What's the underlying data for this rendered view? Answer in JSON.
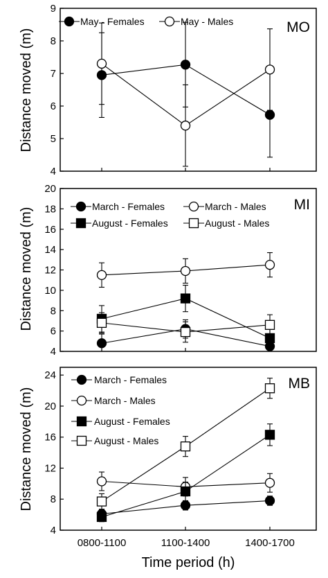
{
  "chart_data": [
    {
      "type": "line",
      "panel_label": "MO",
      "ylabel": "Distance moved (m)",
      "x_categories": [
        "0800-1100",
        "1100-1400",
        "1400-1700"
      ],
      "ylim": [
        4,
        9
      ],
      "yticks": [
        4,
        5,
        6,
        7,
        8,
        9
      ],
      "legend_placement": "top-left",
      "legend_columns": 2,
      "series": [
        {
          "name": "May - Females",
          "marker": "filled-circle",
          "values": [
            6.95,
            7.27,
            5.73
          ],
          "err": [
            1.3,
            1.3,
            1.3
          ]
        },
        {
          "name": "May - Males",
          "marker": "open-circle",
          "values": [
            7.3,
            5.4,
            7.12
          ],
          "err": [
            1.25,
            1.25,
            1.25
          ]
        }
      ]
    },
    {
      "type": "line",
      "panel_label": "MI",
      "ylabel": "Distance moved (m)",
      "x_categories": [
        "0800-1100",
        "1100-1400",
        "1400-1700"
      ],
      "ylim": [
        4,
        20
      ],
      "yticks": [
        4,
        6,
        8,
        10,
        12,
        14,
        16,
        18,
        20
      ],
      "legend_placement": "top",
      "legend_columns": 2,
      "series": [
        {
          "name": "March - Females",
          "marker": "filled-circle",
          "values": [
            4.8,
            6.2,
            4.5
          ],
          "err": [
            0.9,
            0.9,
            0.5
          ]
        },
        {
          "name": "March - Males",
          "marker": "open-circle",
          "values": [
            11.5,
            11.9,
            12.5
          ],
          "err": [
            1.2,
            1.2,
            1.2
          ]
        },
        {
          "name": "August -  Females",
          "marker": "filled-square",
          "values": [
            7.2,
            9.2,
            5.3
          ],
          "err": [
            1.3,
            1.3,
            1.3
          ]
        },
        {
          "name": "August - Males",
          "marker": "open-square",
          "values": [
            6.8,
            5.9,
            6.6
          ],
          "err": [
            1.0,
            1.0,
            1.0
          ]
        }
      ]
    },
    {
      "type": "line",
      "panel_label": "MB",
      "ylabel": "Distance moved (m)",
      "xlabel": "Time period (h)",
      "x_categories": [
        "0800-1100",
        "1100-1400",
        "1400-1700"
      ],
      "ylim": [
        4,
        25
      ],
      "yticks": [
        4,
        8,
        12,
        16,
        20,
        24
      ],
      "legend_placement": "top-left",
      "legend_columns": 1,
      "series": [
        {
          "name": "March - Females",
          "marker": "filled-circle",
          "values": [
            6.1,
            7.2,
            7.8
          ],
          "err": [
            0.6,
            0.6,
            0.6
          ]
        },
        {
          "name": "March - Males",
          "marker": "open-circle",
          "values": [
            10.3,
            9.6,
            10.1
          ],
          "err": [
            1.2,
            1.2,
            1.2
          ]
        },
        {
          "name": "August - Females",
          "marker": "filled-square",
          "values": [
            5.7,
            9.0,
            16.3
          ],
          "err": [
            0.6,
            1.2,
            1.4
          ]
        },
        {
          "name": "August - Males",
          "marker": "open-square",
          "values": [
            7.7,
            14.8,
            22.3
          ],
          "err": [
            1.0,
            1.3,
            1.3
          ]
        }
      ]
    }
  ]
}
